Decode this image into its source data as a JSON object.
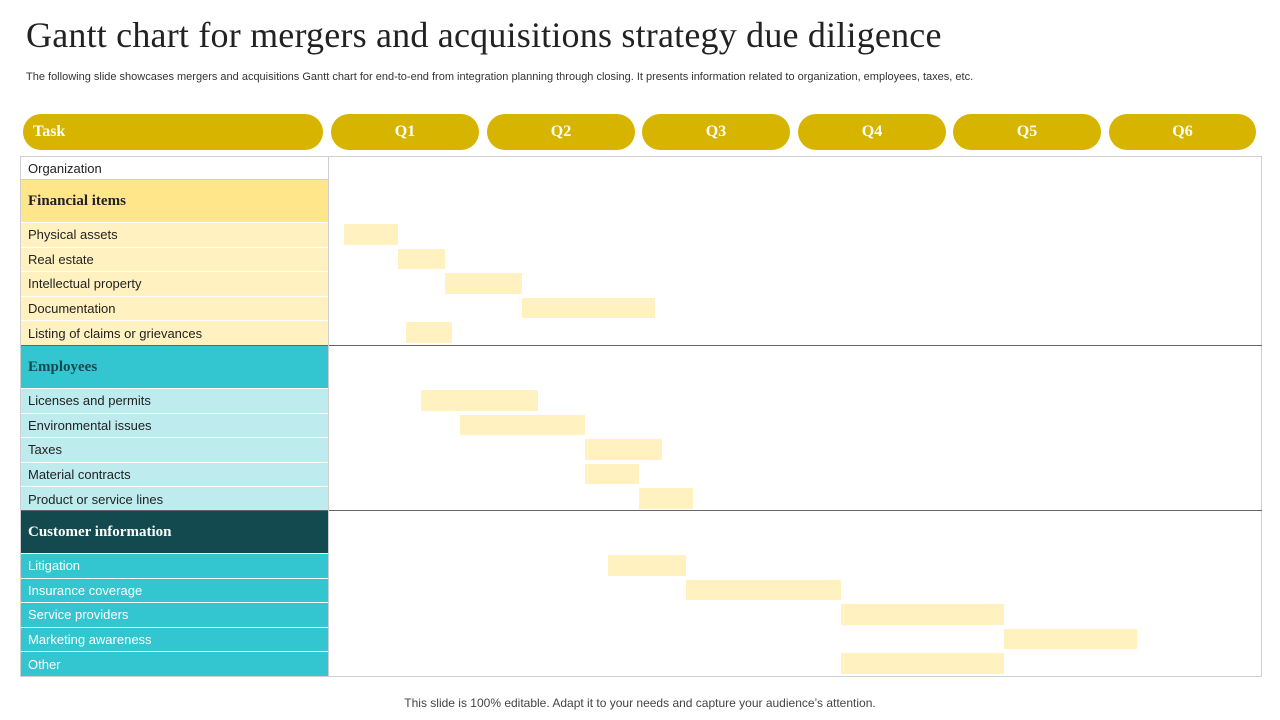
{
  "slide": {
    "title": "Gantt chart for mergers and acquisitions strategy due diligence",
    "subtitle": "The following slide showcases mergers and acquisitions Gantt chart for end-to-end from integration planning through closing. It presents information related to organization, employees, taxes, etc.",
    "footer": "This slide is 100% editable. Adapt it to your needs and capture your audience’s attention."
  },
  "chart_data": {
    "type": "gantt",
    "task_header": "Task",
    "columns": [
      "Q1",
      "Q2",
      "Q3",
      "Q4",
      "Q5",
      "Q6"
    ],
    "column_header": "Organization",
    "colors": {
      "pill": "#d7b400",
      "bar": "#fff2c0",
      "financial_header": "#ffe68a",
      "financial_row": "#fff2c0",
      "employees_header": "#33c6d0",
      "employees_row": "#bdebee",
      "customer_header": "#134a4f",
      "customer_row": "#33c6d0"
    },
    "groups": [
      {
        "name": "Financial items",
        "tasks": [
          {
            "label": "Physical assets",
            "start": 1.1,
            "end": 1.45
          },
          {
            "label": "Real estate",
            "start": 1.45,
            "end": 1.75
          },
          {
            "label": "Intellectual property",
            "start": 1.75,
            "end": 2.25
          },
          {
            "label": "Documentation",
            "start": 2.25,
            "end": 3.1
          },
          {
            "label": "Listing of claims or grievances",
            "start": 1.5,
            "end": 1.8
          }
        ]
      },
      {
        "name": "Employees",
        "tasks": [
          {
            "label": "Licenses and permits",
            "start": 1.6,
            "end": 2.35
          },
          {
            "label": "Environmental  issues",
            "start": 1.85,
            "end": 2.65
          },
          {
            "label": "Taxes",
            "start": 2.65,
            "end": 3.15
          },
          {
            "label": "Material contracts",
            "start": 2.65,
            "end": 3.0
          },
          {
            "label": "Product or service lines",
            "start": 3.0,
            "end": 3.35
          }
        ]
      },
      {
        "name": "Customer information",
        "tasks": [
          {
            "label": "Litigation",
            "start": 2.8,
            "end": 3.3
          },
          {
            "label": "Insurance  coverage",
            "start": 3.3,
            "end": 4.3
          },
          {
            "label": "Service  providers",
            "start": 4.3,
            "end": 5.35
          },
          {
            "label": "Marketing awareness",
            "start": 5.35,
            "end": 6.2
          },
          {
            "label": "Other",
            "start": 4.3,
            "end": 5.35
          }
        ]
      }
    ]
  }
}
